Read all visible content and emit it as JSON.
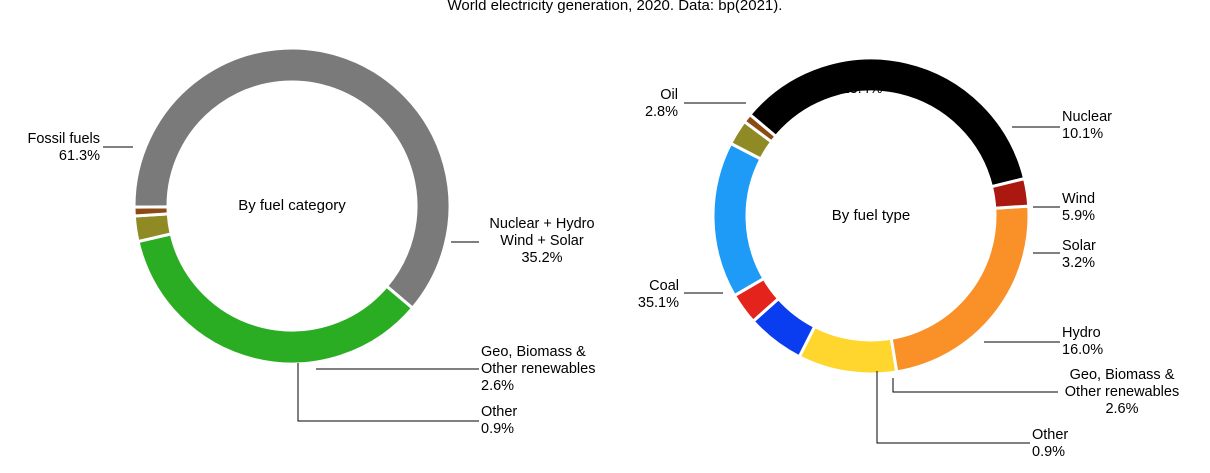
{
  "chart_data": {
    "title": "World electricity generation, 2020. Data: bp(2021).",
    "charts": [
      {
        "type": "pie",
        "center_label": "By fuel category",
        "slices": [
          {
            "id": "fossil",
            "lines": [
              "Fossil fuels",
              "61.3%"
            ],
            "value": 61.3,
            "color": "#7a7a7a"
          },
          {
            "id": "nuclear-hydro-wind-solar",
            "lines": [
              "Nuclear + Hydro",
              "Wind + Solar",
              "35.2%"
            ],
            "value": 35.2,
            "color": "#2aad22"
          },
          {
            "id": "geo-biomass",
            "lines": [
              "Geo, Biomass &",
              "Other renewables",
              "2.6%"
            ],
            "value": 2.6,
            "color": "#8f8a24"
          },
          {
            "id": "other",
            "lines": [
              "Other",
              "0.9%"
            ],
            "value": 0.9,
            "color": "#8b4a14"
          }
        ]
      },
      {
        "type": "pie",
        "center_label": "By fuel type",
        "slices": [
          {
            "id": "gas",
            "lines": [
              "Gas",
              "23.4%"
            ],
            "value": 23.4,
            "color": "#fa9028"
          },
          {
            "id": "nuclear",
            "lines": [
              "Nuclear",
              "10.1%"
            ],
            "value": 10.1,
            "color": "#ffd62e"
          },
          {
            "id": "wind",
            "lines": [
              "Wind",
              "5.9%"
            ],
            "value": 5.9,
            "color": "#0a3cf0"
          },
          {
            "id": "solar",
            "lines": [
              "Solar",
              "3.2%"
            ],
            "value": 3.2,
            "color": "#e5231d"
          },
          {
            "id": "hydro",
            "lines": [
              "Hydro",
              "16.0%"
            ],
            "value": 16.0,
            "color": "#1e9bf6"
          },
          {
            "id": "geo-biomass",
            "lines": [
              "Geo, Biomass &",
              "Other renewables",
              "2.6%"
            ],
            "value": 2.6,
            "color": "#8f8a24"
          },
          {
            "id": "other",
            "lines": [
              "Other",
              "0.9%"
            ],
            "value": 0.9,
            "color": "#8b4a14"
          },
          {
            "id": "coal",
            "lines": [
              "Coal",
              "35.1%"
            ],
            "value": 35.1,
            "color": "#000000"
          },
          {
            "id": "oil",
            "lines": [
              "Oil",
              "2.8%"
            ],
            "value": 2.8,
            "color": "#aa1810"
          }
        ]
      }
    ]
  }
}
